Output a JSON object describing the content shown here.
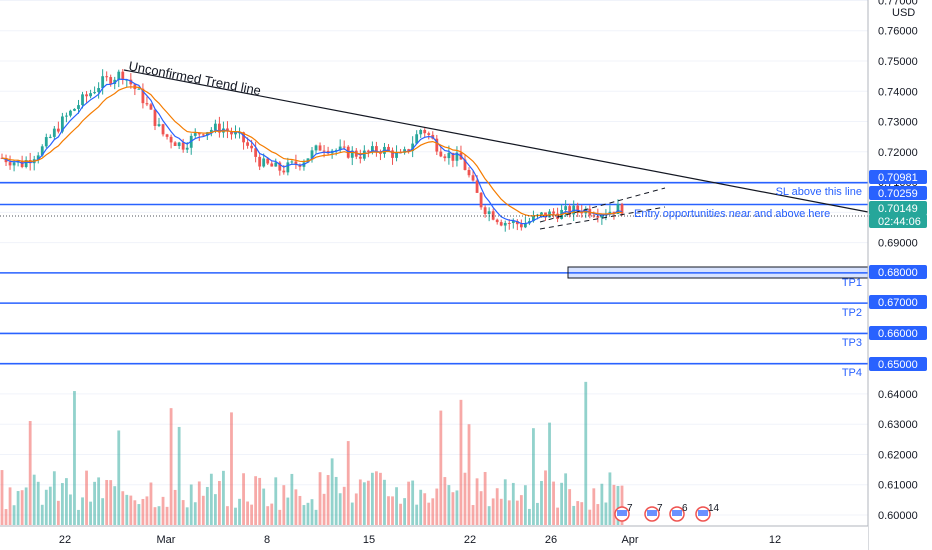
{
  "chart_data": {
    "type": "candlestick",
    "currency": "USD",
    "price_ticks": [
      "0.77000",
      "0.76000",
      "0.75000",
      "0.74000",
      "0.73000",
      "0.72000",
      "0.71000",
      "0.70000",
      "0.69000",
      "0.68000",
      "0.67000",
      "0.66000",
      "0.65000",
      "0.64000",
      "0.63000",
      "0.62000",
      "0.61000",
      "0.60000"
    ],
    "date_ticks": [
      "22",
      "Mar",
      "8",
      "15",
      "22",
      "26",
      "Apr",
      "12"
    ],
    "price_range": [
      0.598,
      0.772
    ],
    "price_tags": [
      {
        "label": "0.70981",
        "value": 0.70981,
        "color": "#2962ff"
      },
      {
        "label": "0.70259",
        "value": 0.70259,
        "color": "#2962ff"
      },
      {
        "label": "0.70149",
        "value": 0.70149,
        "color": "#26a69a"
      },
      {
        "label": "02:44:06",
        "value": null,
        "color": "#26a69a"
      },
      {
        "label": "0.68000",
        "value": 0.68,
        "color": "#2962ff"
      },
      {
        "label": "0.67000",
        "value": 0.67,
        "color": "#2962ff"
      },
      {
        "label": "0.66000",
        "value": 0.66,
        "color": "#2962ff"
      },
      {
        "label": "0.65000",
        "value": 0.65,
        "color": "#2962ff"
      }
    ],
    "horizontal_lines": [
      0.70981,
      0.70259,
      0.68,
      0.67,
      0.66,
      0.65
    ],
    "last_price": 0.70149,
    "annotations": {
      "trend": "Unconfirmed Trend line",
      "sl": "SL above this line",
      "entry": "Entry opportunities near and above here",
      "tp1": "TP1",
      "tp2": "TP2",
      "tp3": "TP3",
      "tp4": "TP4"
    },
    "event_labels": [
      "7",
      "7",
      "6",
      "14"
    ],
    "colors": {
      "up": "#26a69a",
      "down": "#ef5350",
      "ema_fast": "#2962ff",
      "ema_slow": "#f57c00",
      "level": "#2962ff"
    },
    "close_path": [
      0.718,
      0.716,
      0.721,
      0.73,
      0.737,
      0.743,
      0.746,
      0.738,
      0.726,
      0.722,
      0.727,
      0.728,
      0.724,
      0.716,
      0.714,
      0.717,
      0.722,
      0.72,
      0.719,
      0.721,
      0.718,
      0.728,
      0.72,
      0.717,
      0.702,
      0.697,
      0.696,
      0.699,
      0.7,
      0.701,
      0.7,
      0.7015
    ]
  }
}
